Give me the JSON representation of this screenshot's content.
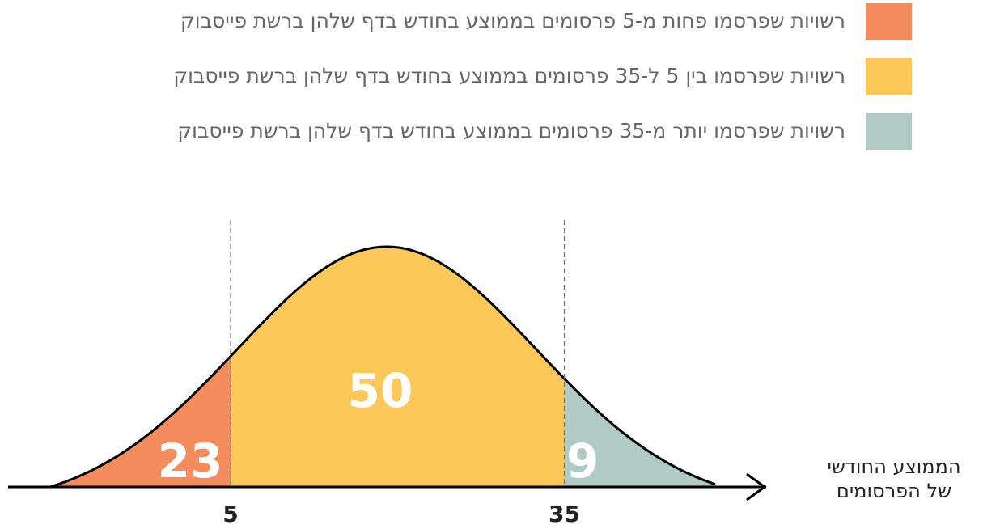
{
  "chart_data": {
    "type": "bell",
    "series": [
      {
        "name": "רשויות שפרסמו פחות מ-5 פרסומים בממוצע בחודש בדף שלהן ברשת פייסבוק",
        "color": "#f48c5e",
        "values": [
          23
        ]
      },
      {
        "name": "רשויות שפרסמו בין 5 ל-35 פרסומים בממוצע בחודש בדף שלהן ברשת פייסבוק",
        "color": "#fdc85a",
        "values": [
          50
        ]
      },
      {
        "name": "רשויות שפרסמו יותר מ-35 פרסומים בממוצע בחודש בדף שלהן ברשת פייסבוק",
        "color": "#b0cbc5",
        "values": [
          9
        ]
      }
    ],
    "x_label": [
      "הממוצע החודשי",
      "של הפרסומים"
    ],
    "xlim": [
      -15,
      53
    ],
    "xticks": [
      5,
      35
    ]
  }
}
